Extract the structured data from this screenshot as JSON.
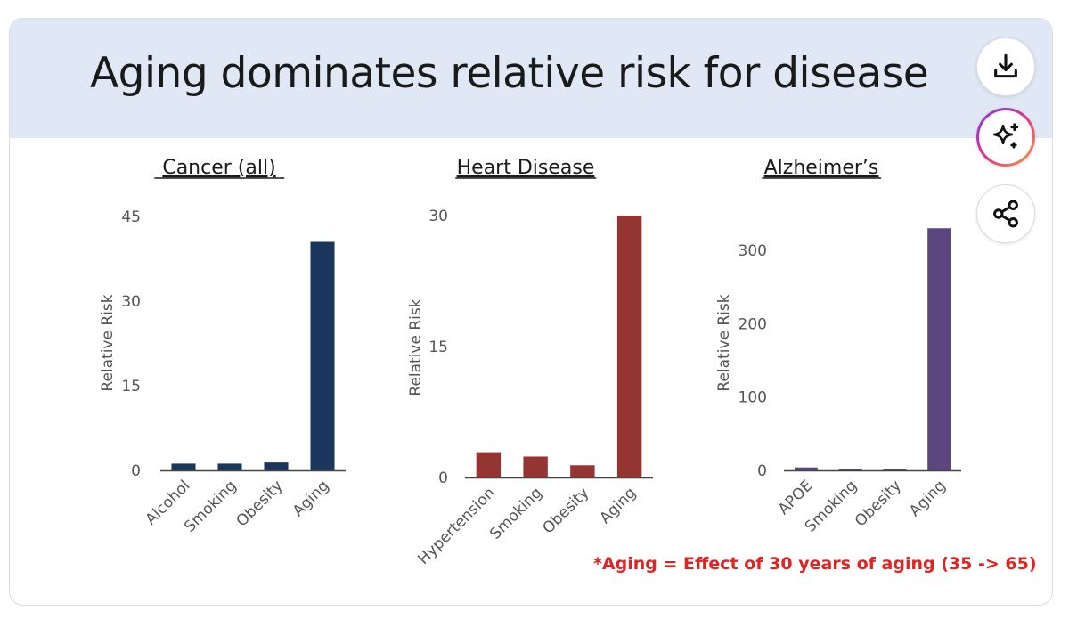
{
  "slide": {
    "title": "Aging dominates relative risk for disease",
    "footnote": "*Aging = Effect of 30 years of aging (35 -> 65)"
  },
  "actions": {
    "download": "download-icon",
    "ai": "sparkle-icon",
    "share": "share-icon"
  },
  "chart_data": [
    {
      "type": "bar",
      "title": "Cancer (all)",
      "ylabel": "Relative Risk",
      "categories": [
        "Alcohol",
        "Smoking",
        "Obesity",
        "Aging"
      ],
      "values": [
        1.2,
        1.2,
        1.4,
        40.5
      ],
      "ylim": [
        0,
        45
      ],
      "yticks": [
        0,
        15,
        30,
        45
      ],
      "color": "#1b365d",
      "grid": false,
      "legend": false
    },
    {
      "type": "bar",
      "title": "Heart Disease",
      "ylabel": "Relative Risk",
      "categories": [
        "Hypertension",
        "Smoking",
        "Obesity",
        "Aging"
      ],
      "values": [
        2.9,
        2.4,
        1.4,
        30
      ],
      "ylim": [
        0,
        30
      ],
      "yticks": [
        0,
        15,
        30
      ],
      "color": "#953532",
      "grid": false,
      "legend": false
    },
    {
      "type": "bar",
      "title": "Alzheimer’s",
      "ylabel": "Relative Risk",
      "categories": [
        "APOE",
        "Smoking",
        "Obesity",
        "Aging"
      ],
      "values": [
        4,
        1.5,
        1.5,
        330
      ],
      "ylim": [
        0,
        340
      ],
      "yticks": [
        0,
        100,
        200,
        300
      ],
      "color": "#5b477d",
      "grid": false,
      "legend": false
    }
  ]
}
